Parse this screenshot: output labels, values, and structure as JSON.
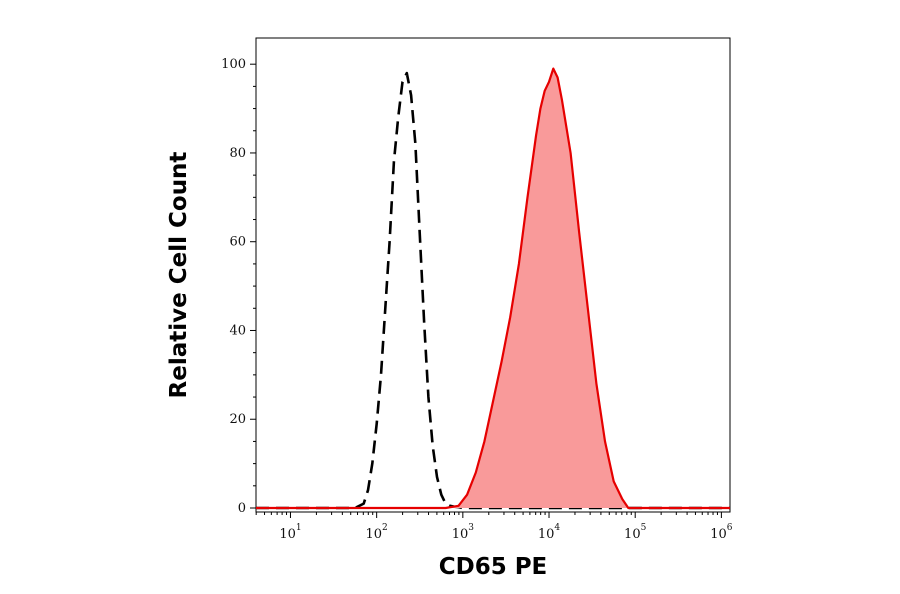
{
  "chart_data": {
    "type": "area",
    "title": "",
    "xlabel": "CD65 PE",
    "ylabel": "Relative Cell Count",
    "x_scale": "log10",
    "xlim": [
      0.6,
      6.1
    ],
    "ylim": [
      0,
      105
    ],
    "x_ticks": [
      {
        "base": "10",
        "exp": "1",
        "value": 1
      },
      {
        "base": "10",
        "exp": "2",
        "value": 2
      },
      {
        "base": "10",
        "exp": "3",
        "value": 3
      },
      {
        "base": "10",
        "exp": "4",
        "value": 4
      },
      {
        "base": "10",
        "exp": "5",
        "value": 5
      },
      {
        "base": "10",
        "exp": "6",
        "value": 6
      }
    ],
    "y_ticks": [
      {
        "label": "0",
        "value": 0
      },
      {
        "label": "20",
        "value": 20
      },
      {
        "label": "40",
        "value": 40
      },
      {
        "label": "60",
        "value": 60
      },
      {
        "label": "80",
        "value": 80
      },
      {
        "label": "100",
        "value": 100
      }
    ],
    "grid": false,
    "legend": "none",
    "series": [
      {
        "style": "dashed",
        "color": "#000000",
        "fill": "none",
        "x_log10": [
          0.6,
          1.75,
          1.85,
          1.9,
          1.95,
          2.0,
          2.05,
          2.1,
          2.15,
          2.2,
          2.25,
          2.3,
          2.35,
          2.4,
          2.45,
          2.5,
          2.55,
          2.6,
          2.65,
          2.7,
          2.75,
          2.8,
          2.85,
          2.9,
          2.95,
          3.0,
          6.1
        ],
        "y": [
          0,
          0,
          1,
          4,
          10,
          19,
          30,
          45,
          60,
          78,
          88,
          96,
          98,
          93,
          82,
          62,
          42,
          25,
          14,
          7,
          3,
          1,
          0.5,
          0.3,
          0.2,
          0,
          0
        ]
      },
      {
        "style": "solid",
        "color": "#e60000",
        "fill": "#f99a9a",
        "x_log10": [
          0.6,
          2.8,
          2.95,
          3.05,
          3.15,
          3.25,
          3.35,
          3.45,
          3.55,
          3.65,
          3.75,
          3.85,
          3.9,
          3.95,
          4.0,
          4.05,
          4.1,
          4.15,
          4.25,
          4.35,
          4.45,
          4.55,
          4.65,
          4.75,
          4.85,
          4.92,
          6.1
        ],
        "y": [
          0,
          0,
          0.5,
          3,
          8,
          15,
          24,
          33,
          43,
          55,
          70,
          84,
          90,
          94,
          96,
          99,
          97,
          92,
          80,
          62,
          45,
          28,
          15,
          6,
          2,
          0,
          0
        ]
      }
    ]
  }
}
